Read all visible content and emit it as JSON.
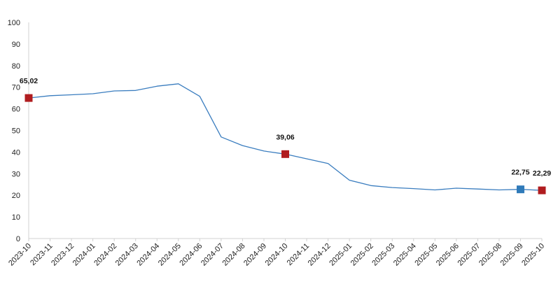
{
  "chart_data": {
    "type": "line",
    "title": "",
    "xlabel": "",
    "ylabel": "",
    "ylim": [
      0,
      100
    ],
    "yticks": [
      0,
      10,
      20,
      30,
      40,
      50,
      60,
      70,
      80,
      90,
      100
    ],
    "grid": false,
    "legend": "none",
    "line_color": "#3a7dbf",
    "highlight_color_red": "#b01c1f",
    "highlight_color_blue": "#2f7ab9",
    "categories": [
      "2023-10",
      "2023-11",
      "2023-12",
      "2024-01",
      "2024-02",
      "2024-03",
      "2024-04",
      "2024-05",
      "2024-06",
      "2024-07",
      "2024-08",
      "2024-09",
      "2024-10",
      "2024-11",
      "2024-12",
      "2025-01",
      "2025-02",
      "2025-03",
      "2025-04",
      "2025-05",
      "2025-06",
      "2025-07",
      "2025-08",
      "2025-09",
      "2025-10"
    ],
    "series": [
      {
        "values": [
          65.02,
          66.1,
          66.5,
          67.0,
          68.3,
          68.5,
          70.5,
          71.6,
          65.8,
          47.0,
          43.0,
          40.5,
          39.06,
          36.9,
          34.7,
          27.0,
          24.5,
          23.6,
          23.1,
          22.5,
          23.3,
          22.9,
          22.5,
          22.75,
          22.29
        ]
      }
    ],
    "highlights": [
      {
        "index": 0,
        "label": "65,02",
        "color": "red"
      },
      {
        "index": 12,
        "label": "39,06",
        "color": "red"
      },
      {
        "index": 23,
        "label": "22,75",
        "color": "blue"
      },
      {
        "index": 24,
        "label": "22,29",
        "color": "red"
      }
    ]
  }
}
